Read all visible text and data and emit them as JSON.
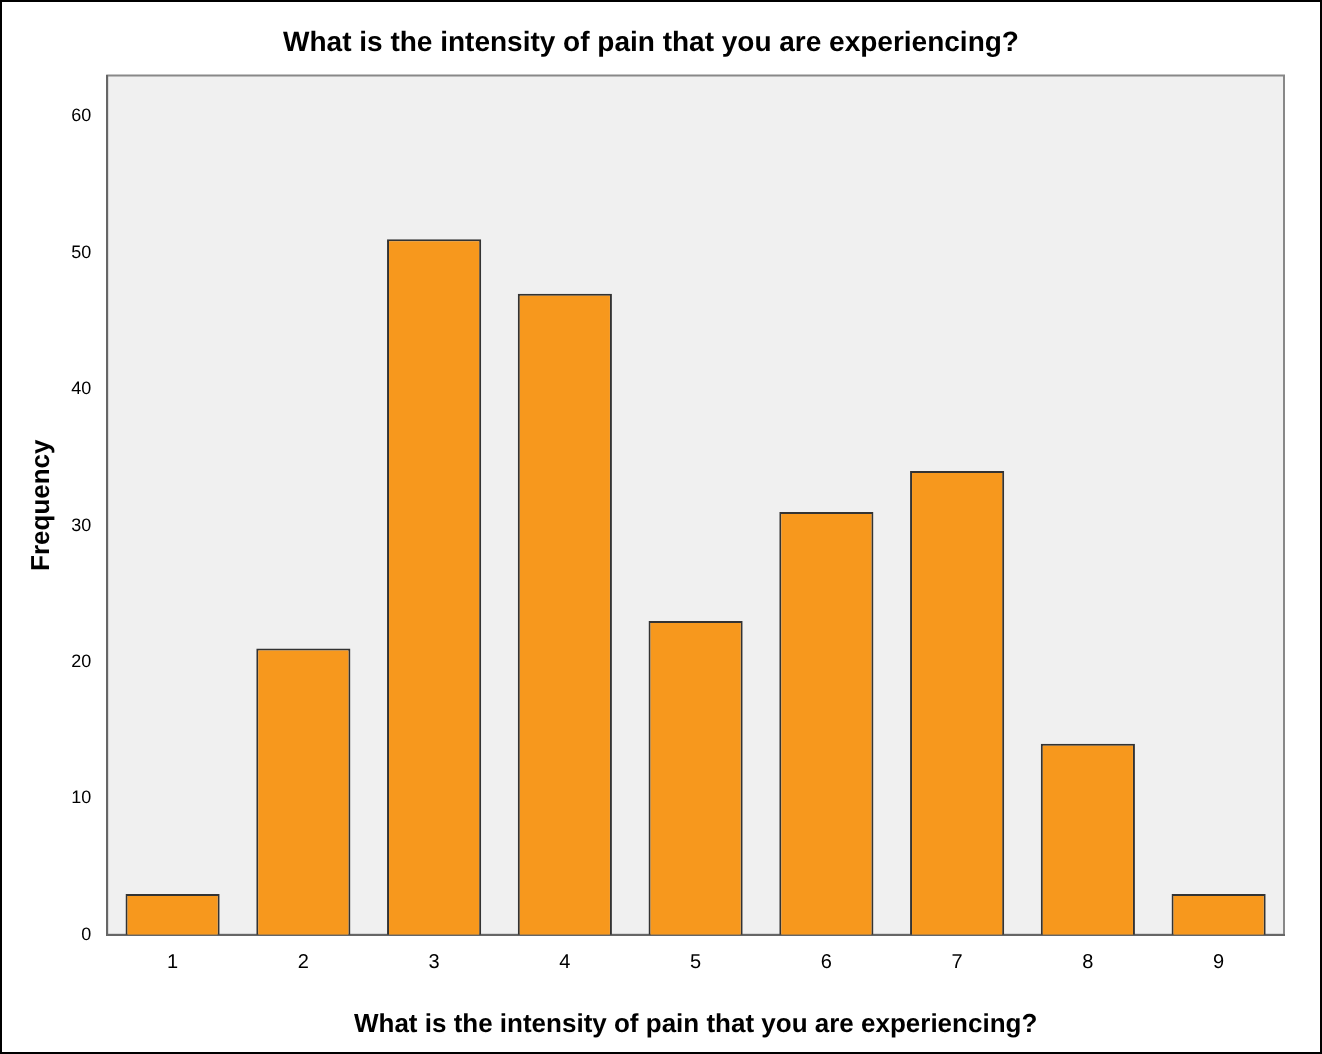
{
  "chart_data": {
    "type": "bar",
    "title": "What is the intensity of pain that you are experiencing?",
    "xlabel": "What is the intensity of pain that you are experiencing?",
    "ylabel": "Frequency",
    "categories": [
      "1",
      "2",
      "3",
      "4",
      "5",
      "6",
      "7",
      "8",
      "9"
    ],
    "values": [
      3,
      21,
      51,
      47,
      23,
      31,
      34,
      14,
      3
    ],
    "color": "#f7981d",
    "ylim": [
      0,
      63
    ],
    "yticks": [
      0,
      10,
      20,
      30,
      40,
      50,
      60
    ],
    "grid": false,
    "legend": false
  }
}
